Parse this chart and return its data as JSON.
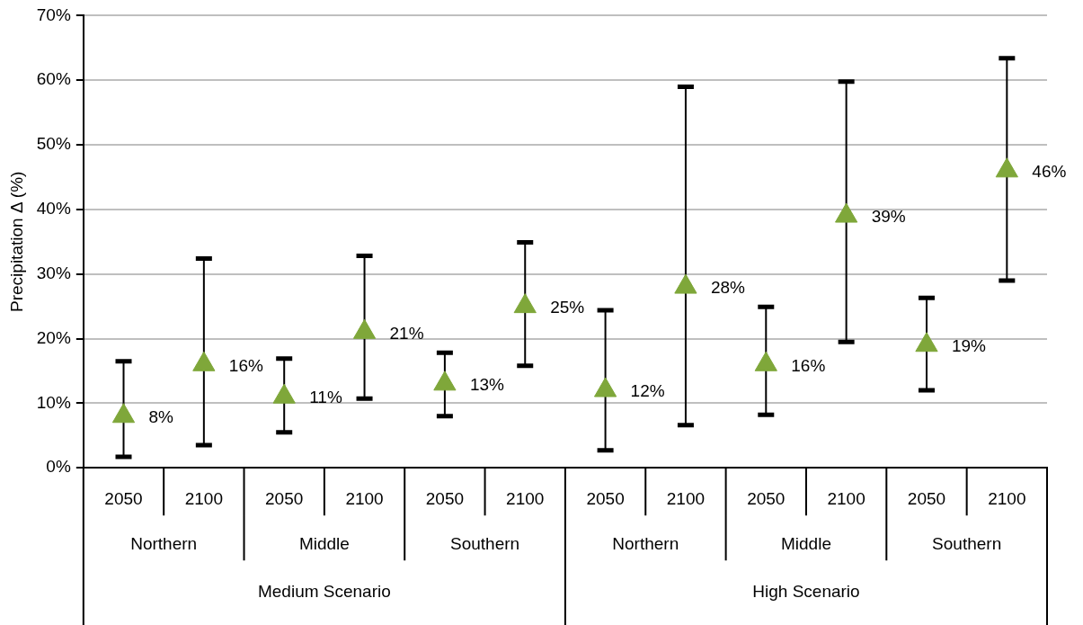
{
  "chart_data": {
    "type": "scatter",
    "ylabel": "Precipitation Δ (%)",
    "categories": [
      "2050",
      "2100",
      "2050",
      "2100",
      "2050",
      "2100",
      "2050",
      "2100",
      "2050",
      "2100",
      "2050",
      "2100"
    ],
    "series": [
      {
        "color": "#7fa73a",
        "values": [
          8,
          16,
          11,
          21,
          13,
          25,
          12,
          28,
          16,
          39,
          19,
          46
        ],
        "value_labels": [
          "8%",
          "16%",
          "11%",
          "21%",
          "13%",
          "25%",
          "12%",
          "28%",
          "16%",
          "39%",
          "19%",
          "46%"
        ],
        "errors": [
          [
            1.7,
            16.5
          ],
          [
            3.5,
            32.4
          ],
          [
            5.5,
            16.9
          ],
          [
            10.7,
            32.8
          ],
          [
            8.0,
            17.8
          ],
          [
            15.8,
            34.9
          ],
          [
            2.7,
            24.4
          ],
          [
            6.6,
            59.0
          ],
          [
            8.2,
            24.9
          ],
          [
            19.5,
            59.8
          ],
          [
            12.0,
            26.3
          ],
          [
            29.0,
            63.4
          ]
        ]
      }
    ],
    "ylim": [
      0,
      70
    ],
    "yticks": [
      {
        "value": 0,
        "label": "0%"
      },
      {
        "value": 10,
        "label": "10%"
      },
      {
        "value": 20,
        "label": "20%"
      },
      {
        "value": 30,
        "label": "30%"
      },
      {
        "value": 40,
        "label": "40%"
      },
      {
        "value": 50,
        "label": "50%"
      },
      {
        "value": 60,
        "label": "60%"
      },
      {
        "value": 70,
        "label": "70%"
      }
    ],
    "annotations": [
      "Northern",
      "Middle",
      "Southern",
      "Northern",
      "Middle",
      "Southern",
      "Medium Scenario",
      "High Scenario"
    ],
    "grid": "y",
    "legend": false,
    "marker": "triangle"
  }
}
